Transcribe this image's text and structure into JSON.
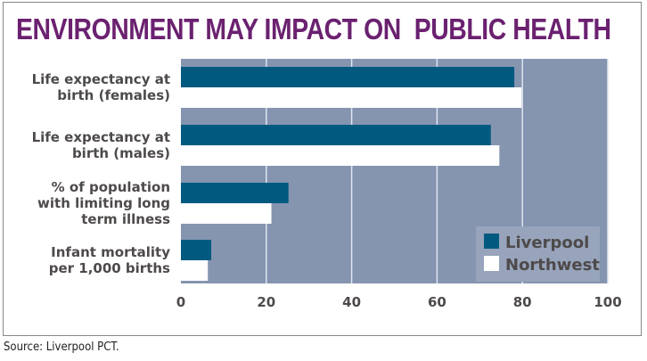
{
  "chart_data": {
    "type": "bar",
    "orientation": "horizontal",
    "title": "ENVIRONMENT MAY IMPACT ON  PUBLIC HEALTH",
    "categories": [
      [
        "Life expectancy at",
        "birth (females)"
      ],
      [
        "Life expectancy at",
        "birth (males)"
      ],
      [
        "% of population",
        "with limiting long",
        "term illness"
      ],
      [
        "Infant mortality",
        "per 1,000 births"
      ]
    ],
    "series": [
      {
        "name": "Liverpool",
        "color": "#005a80",
        "values": [
          78.1,
          72.6,
          25.2,
          7.1
        ]
      },
      {
        "name": "Northwest",
        "color": "#ffffff",
        "values": [
          79.8,
          74.6,
          21.2,
          6.3
        ]
      }
    ],
    "xlim": [
      0,
      100
    ],
    "xticks": [
      0,
      20,
      40,
      60,
      80,
      100
    ],
    "grid": true,
    "plot_background": "#8595b0",
    "legend_placement": "bottom-right",
    "source": "Source: Liverpool PCT."
  }
}
